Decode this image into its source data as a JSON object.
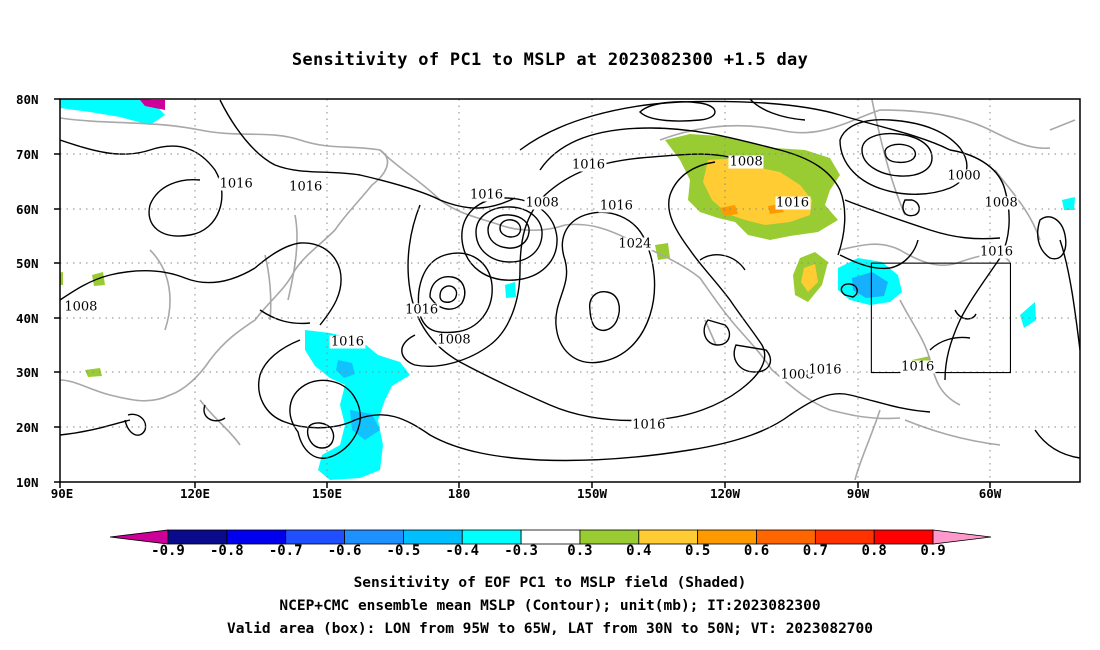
{
  "title": "Sensitivity of PC1 to MSLP at 2023082300 +1.5 day",
  "lat_labels": [
    "80N",
    "70N",
    "60N",
    "50N",
    "40N",
    "30N",
    "20N",
    "10N"
  ],
  "lon_labels": [
    "90E",
    "120E",
    "150E",
    "180",
    "150W",
    "120W",
    "90W",
    "60W"
  ],
  "colorbar": {
    "labels": [
      "-0.9",
      "-0.8",
      "-0.7",
      "-0.6",
      "-0.5",
      "-0.4",
      "-0.3",
      "0.3",
      "0.4",
      "0.5",
      "0.6",
      "0.7",
      "0.8",
      "0.9"
    ],
    "colors": [
      "#cc0099",
      "#0a0a8c",
      "#0000ee",
      "#1f4fff",
      "#1e90ff",
      "#00bfff",
      "#00ffff",
      "#ffffff",
      "#99cc33",
      "#ffcc33",
      "#ff9900",
      "#ff6600",
      "#ff3300",
      "#ff0000",
      "#ff99cc"
    ]
  },
  "contour_labels": [
    {
      "text": "1016",
      "lon": 128,
      "lat": 64.5
    },
    {
      "text": "1016",
      "lon": 143,
      "lat": 64
    },
    {
      "text": "1008",
      "lon": 94.5,
      "lat": 42
    },
    {
      "text": "1016",
      "lon": 168,
      "lat": 41.5
    },
    {
      "text": "1016",
      "lon": 152,
      "lat": 35.5
    },
    {
      "text": "1008",
      "lon": 175,
      "lat": 36
    },
    {
      "text": "1016",
      "lon": -178,
      "lat": 62.5
    },
    {
      "text": "1008",
      "lon": -166,
      "lat": 61
    },
    {
      "text": "1016",
      "lon": -156,
      "lat": 68
    },
    {
      "text": "1016",
      "lon": -150,
      "lat": 60.5
    },
    {
      "text": "1024",
      "lon": -146,
      "lat": 53.5
    },
    {
      "text": "1016",
      "lon": -143,
      "lat": 20.5
    },
    {
      "text": "1008",
      "lon": -122,
      "lat": 68.5
    },
    {
      "text": "1016",
      "lon": -112,
      "lat": 61
    },
    {
      "text": "1008",
      "lon": -111,
      "lat": 29.5
    },
    {
      "text": "1016",
      "lon": -105,
      "lat": 30.5
    },
    {
      "text": "1016",
      "lon": -85,
      "lat": 31
    },
    {
      "text": "1000",
      "lon": -75,
      "lat": 66
    },
    {
      "text": "1008",
      "lon": -67,
      "lat": 61
    },
    {
      "text": "1016",
      "lon": -68,
      "lat": 52
    }
  ],
  "box": {
    "lon_w": -95,
    "lon_e": -65,
    "lat_s": 30,
    "lat_n": 50
  },
  "captions": [
    "Sensitivity of EOF PC1 to MSLP field (Shaded)",
    "NCEP+CMC ensemble mean MSLP (Contour); unit(mb); IT:2023082300",
    "Valid area (box): LON from 95W to 65W, LAT from 30N to 50N; VT: 2023082700"
  ]
}
